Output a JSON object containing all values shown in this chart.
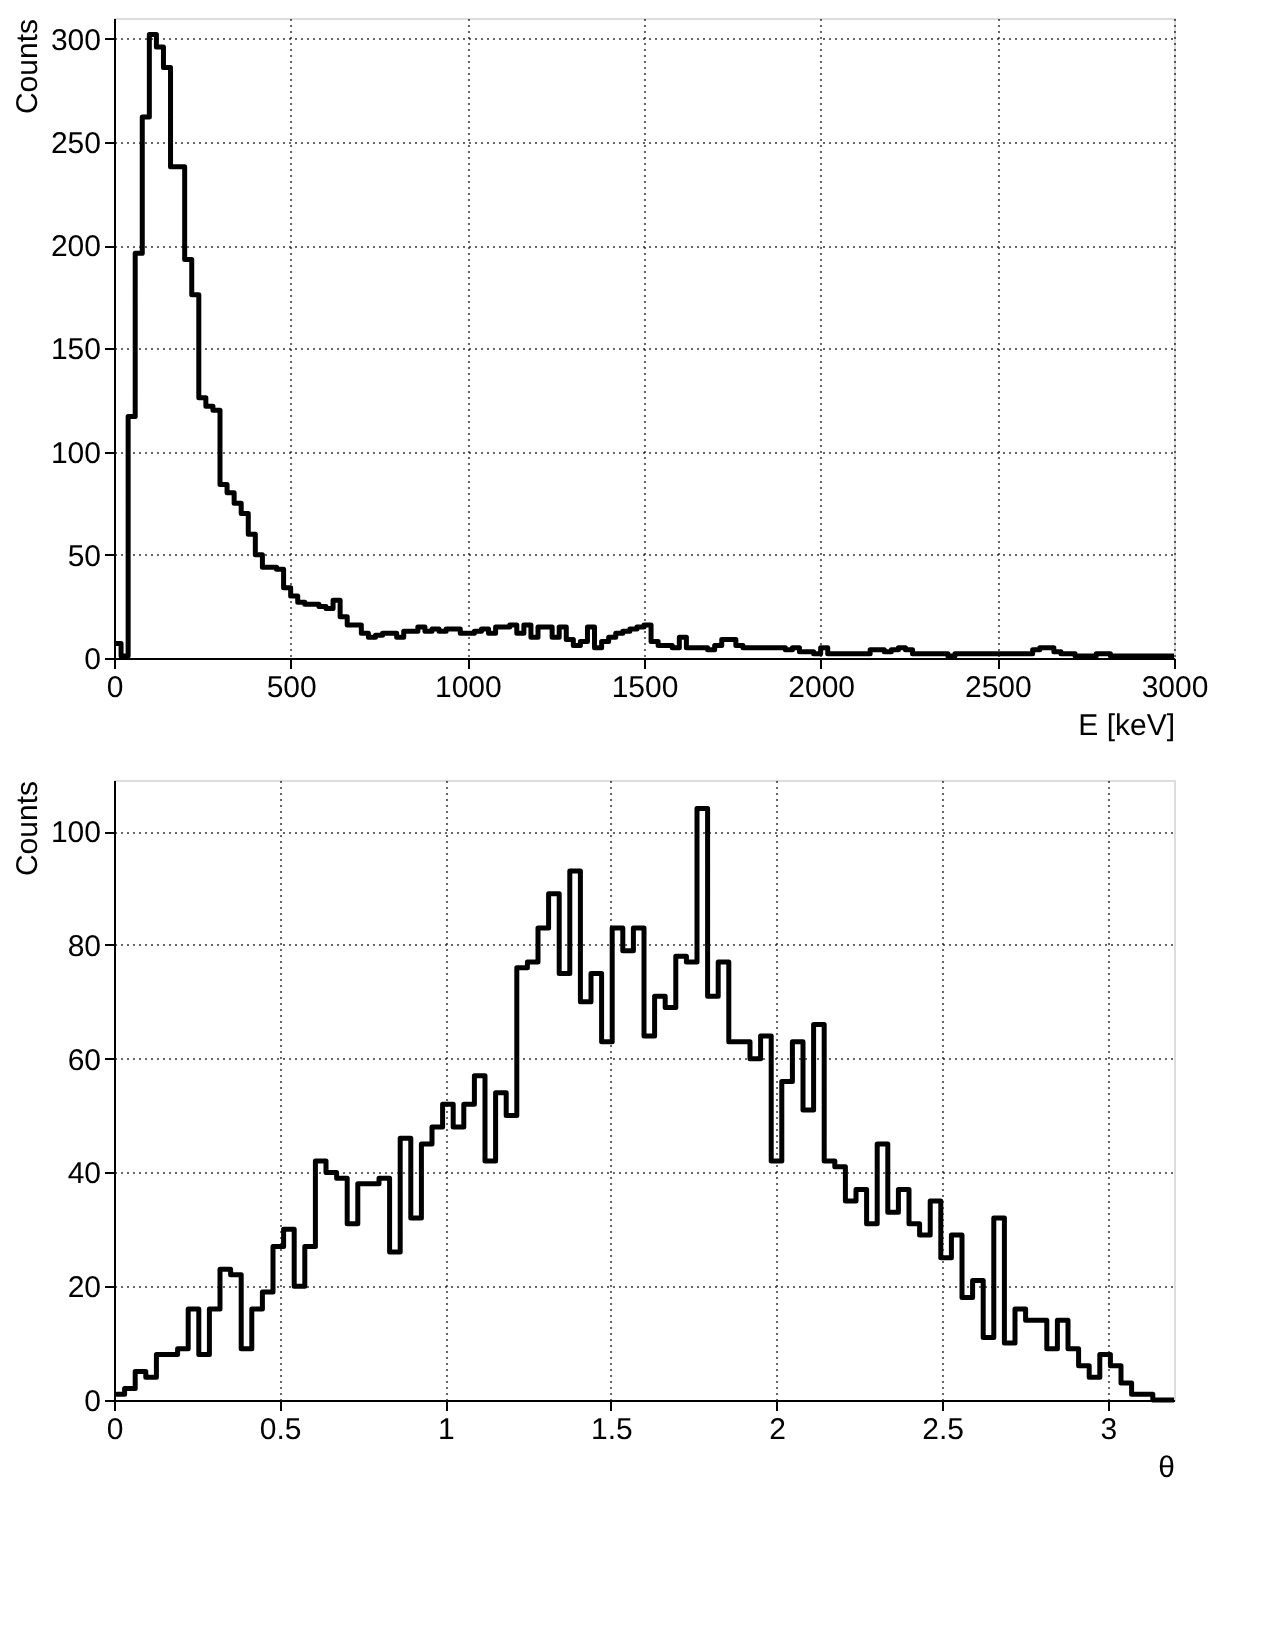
{
  "chart_data": [
    {
      "type": "histogram",
      "xlabel": "E [keV]",
      "ylabel": "Counts",
      "color": "#000000",
      "grid": true,
      "xlim": [
        0,
        3000
      ],
      "xticks": [
        0,
        500,
        1000,
        1500,
        2000,
        2500,
        3000
      ],
      "ylim": [
        0,
        310
      ],
      "yticks": [
        0,
        50,
        100,
        150,
        200,
        250,
        300
      ],
      "bins": [
        0,
        20,
        40,
        60,
        80,
        100,
        120,
        140,
        160,
        180,
        200,
        220,
        240,
        260,
        280,
        300,
        320,
        340,
        360,
        380,
        400,
        420,
        440,
        460,
        480,
        500,
        520,
        540,
        560,
        580,
        600,
        620,
        640,
        660,
        680,
        700,
        720,
        740,
        760,
        780,
        800,
        820,
        840,
        860,
        880,
        900,
        920,
        940,
        960,
        980,
        1000,
        1020,
        1040,
        1060,
        1080,
        1100,
        1120,
        1140,
        1160,
        1180,
        1200,
        1220,
        1240,
        1260,
        1280,
        1300,
        1320,
        1340,
        1360,
        1380,
        1400,
        1420,
        1440,
        1460,
        1480,
        1500,
        1520,
        1540,
        1560,
        1580,
        1600,
        1620,
        1640,
        1660,
        1680,
        1700,
        1720,
        1740,
        1760,
        1780,
        1800,
        1820,
        1840,
        1860,
        1880,
        1900,
        1920,
        1940,
        1960,
        1980,
        2000,
        2020,
        2040,
        2060,
        2080,
        2100,
        2120,
        2140,
        2160,
        2180,
        2200,
        2220,
        2240,
        2260,
        2280,
        2300,
        2320,
        2340,
        2360,
        2380,
        2400,
        2420,
        2440,
        2460,
        2480,
        2500,
        2520,
        2540,
        2560,
        2580,
        2600,
        2620,
        2640,
        2660,
        2680,
        2700,
        2720,
        2740,
        2760,
        2780,
        2800,
        2820,
        2840,
        2860,
        2880,
        2900,
        2920,
        2940,
        2960,
        2980,
        3000
      ],
      "values": [
        7,
        1,
        117,
        196,
        262,
        302,
        296,
        286,
        238,
        238,
        193,
        176,
        126,
        122,
        120,
        84,
        80,
        75,
        70,
        60,
        50,
        44,
        44,
        43,
        34,
        30,
        27,
        26,
        26,
        25,
        24,
        28,
        20,
        16,
        16,
        12,
        10,
        11,
        12,
        12,
        10,
        13,
        13,
        15,
        13,
        14,
        13,
        14,
        14,
        12,
        12,
        13,
        14,
        12,
        15,
        15,
        16,
        12,
        16,
        10,
        15,
        15,
        10,
        15,
        9,
        6,
        8,
        15,
        5,
        8,
        10,
        12,
        13,
        14,
        15,
        16,
        8,
        6,
        6,
        5,
        10,
        5,
        5,
        5,
        4,
        6,
        9,
        9,
        6,
        5,
        5,
        5,
        5,
        5,
        5,
        4,
        5,
        3,
        3,
        2,
        5,
        2,
        2,
        2,
        2,
        2,
        2,
        4,
        4,
        3,
        4,
        5,
        4,
        2,
        2,
        2,
        2,
        2,
        1,
        2,
        2,
        2,
        2,
        2,
        2,
        2,
        2,
        2,
        2,
        2,
        4,
        5,
        5,
        3,
        2,
        2,
        1,
        1,
        1,
        2,
        2,
        1,
        1,
        1,
        1,
        1,
        1,
        1,
        1,
        1
      ]
    },
    {
      "type": "histogram",
      "xlabel": "θ",
      "ylabel": "Counts",
      "color": "#000000",
      "grid": true,
      "xlim": [
        0,
        3.2
      ],
      "xticks": [
        0,
        0.5,
        1,
        1.5,
        2,
        2.5,
        3
      ],
      "ylim": [
        0,
        109
      ],
      "yticks": [
        0,
        20,
        40,
        60,
        80,
        100
      ],
      "bins": [
        0,
        0.032,
        0.064,
        0.096,
        0.128,
        0.16,
        0.192,
        0.224,
        0.256,
        0.288,
        0.32,
        0.352,
        0.384,
        0.416,
        0.448,
        0.48,
        0.512,
        0.544,
        0.576,
        0.608,
        0.64,
        0.672,
        0.704,
        0.736,
        0.768,
        0.8,
        0.832,
        0.864,
        0.896,
        0.928,
        0.96,
        0.992,
        1.024,
        1.056,
        1.088,
        1.12,
        1.152,
        1.184,
        1.216,
        1.248,
        1.28,
        1.312,
        1.344,
        1.376,
        1.408,
        1.44,
        1.472,
        1.504,
        1.536,
        1.568,
        1.6,
        1.632,
        1.664,
        1.696,
        1.728,
        1.76,
        1.792,
        1.824,
        1.856,
        1.888,
        1.92,
        1.952,
        1.984,
        2.016,
        2.048,
        2.08,
        2.112,
        2.144,
        2.176,
        2.208,
        2.24,
        2.272,
        2.304,
        2.336,
        2.368,
        2.4,
        2.432,
        2.464,
        2.496,
        2.528,
        2.56,
        2.592,
        2.624,
        2.656,
        2.688,
        2.72,
        2.752,
        2.784,
        2.816,
        2.848,
        2.88,
        2.912,
        2.944,
        2.976,
        3.008,
        3.04,
        3.072,
        3.104,
        3.136,
        3.168,
        3.2
      ],
      "values": [
        1,
        2,
        5,
        4,
        8,
        8,
        9,
        16,
        8,
        16,
        23,
        22,
        9,
        16,
        19,
        27,
        30,
        20,
        27,
        42,
        40,
        39,
        31,
        38,
        38,
        39,
        26,
        46,
        32,
        45,
        48,
        52,
        48,
        52,
        57,
        42,
        54,
        50,
        76,
        77,
        83,
        89,
        75,
        93,
        70,
        75,
        63,
        83,
        79,
        83,
        64,
        71,
        69,
        78,
        77,
        104,
        71,
        77,
        63,
        63,
        60,
        64,
        42,
        56,
        63,
        51,
        66,
        42,
        41,
        35,
        37,
        31,
        45,
        33,
        37,
        31,
        29,
        35,
        25,
        29,
        18,
        21,
        11,
        32,
        10,
        16,
        14,
        14,
        9,
        14,
        9,
        6,
        4,
        8,
        6,
        3,
        1,
        1,
        0,
        0
      ]
    }
  ]
}
